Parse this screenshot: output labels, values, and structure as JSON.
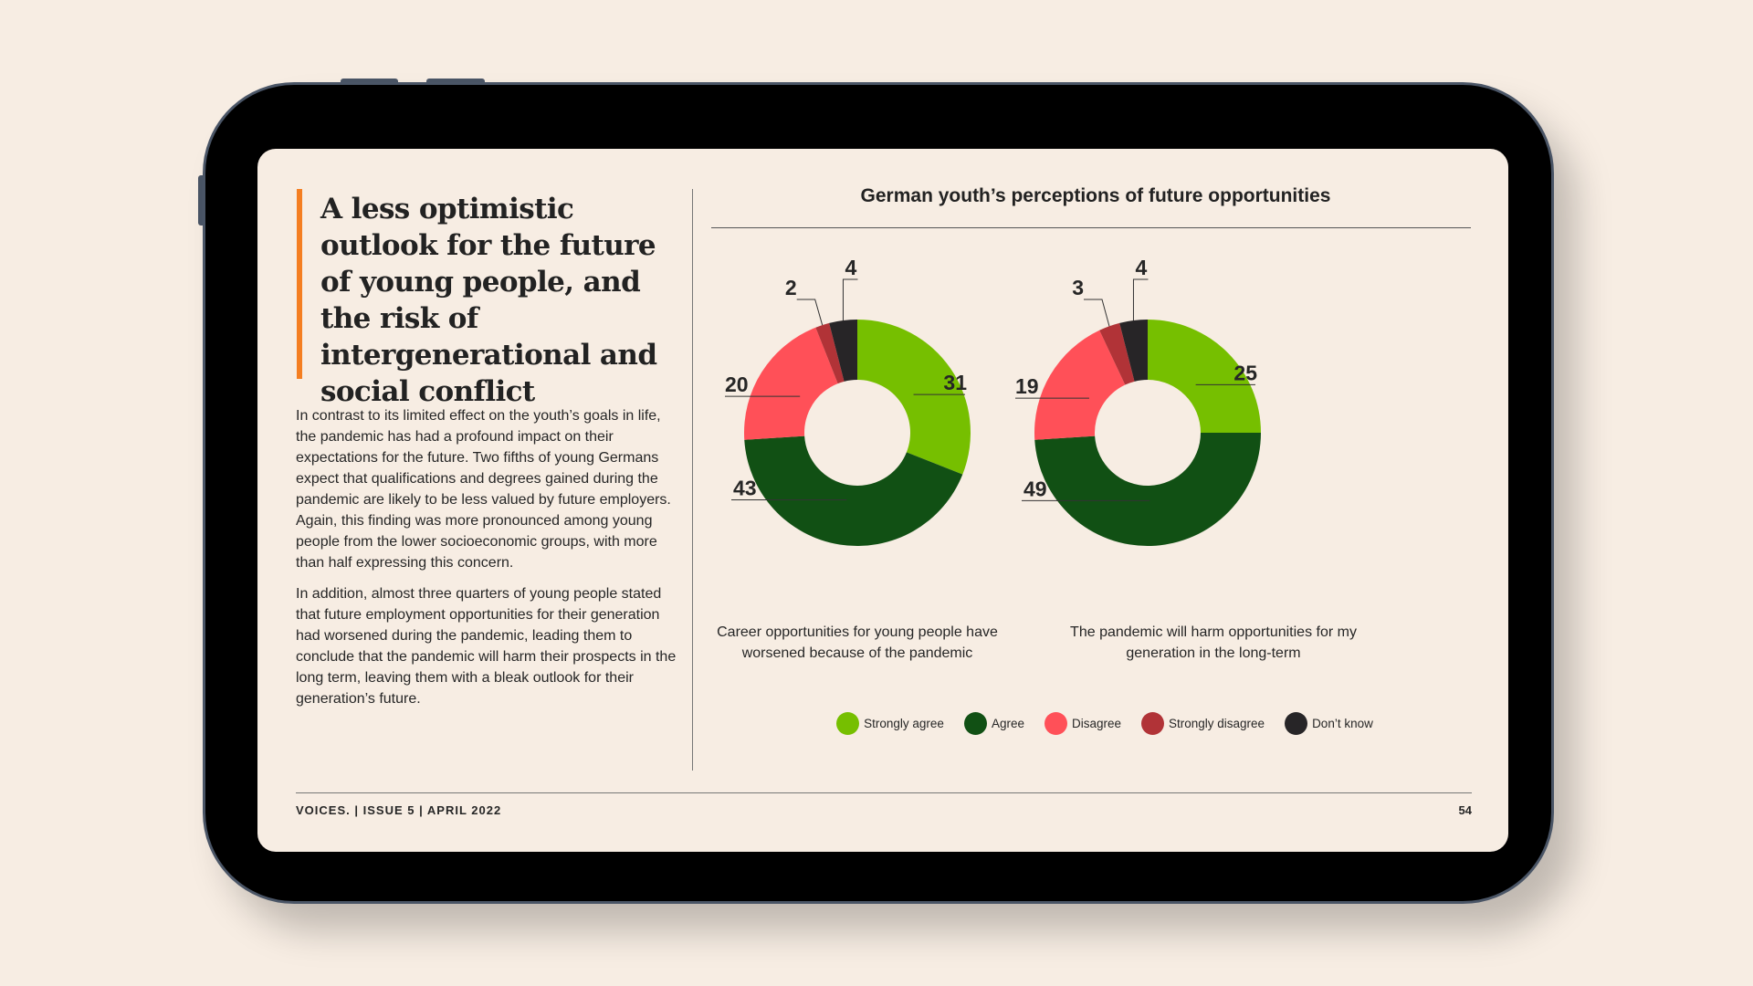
{
  "article": {
    "headline": "A less optimistic outlook for the future of young people, and the risk of intergenerational and social conflict",
    "paragraphs": [
      "In contrast to its limited effect on the youth’s goals in life, the pandemic has had a profound impact on their expectations for the future. Two fifths of young Germans expect that qualifications and degrees gained during the pandemic are likely to be less valued by future employers. Again, this finding was more pronounced among young people from the lower socioeconomic groups, with more than half expressing this concern.",
      "In addition, almost three quarters of young people stated that future employment opportunities for their generation had worsened during the pandemic, leading them to conclude that the pandemic will harm their prospects in the long term, leaving them with a bleak outlook for their generation’s future."
    ]
  },
  "colors": {
    "accent_bar": "#f47e21",
    "strongly_agree": "#76bf00",
    "agree": "#115014",
    "disagree": "#ff5058",
    "strongly_disagree": "#b13337",
    "dont_know": "#272527"
  },
  "chart_data": {
    "type": "pie",
    "variant": "donut",
    "title": "German youth’s perceptions of future opportunities",
    "categories": [
      "Strongly agree",
      "Agree",
      "Disagree",
      "Strongly disagree",
      "Don’t know"
    ],
    "legend_position": "bottom",
    "charts": [
      {
        "caption": "Career opportunities for young people have worsened because of the pandemic",
        "values": [
          31,
          43,
          20,
          2,
          4
        ]
      },
      {
        "caption": "The pandemic will harm opportunities for my generation in the long-term",
        "values": [
          25,
          49,
          19,
          3,
          4
        ]
      }
    ]
  },
  "footer": {
    "publication": "VOICES.",
    "issue": "ISSUE 5",
    "date": "APRIL 2022",
    "separator": "|",
    "page": "54"
  }
}
